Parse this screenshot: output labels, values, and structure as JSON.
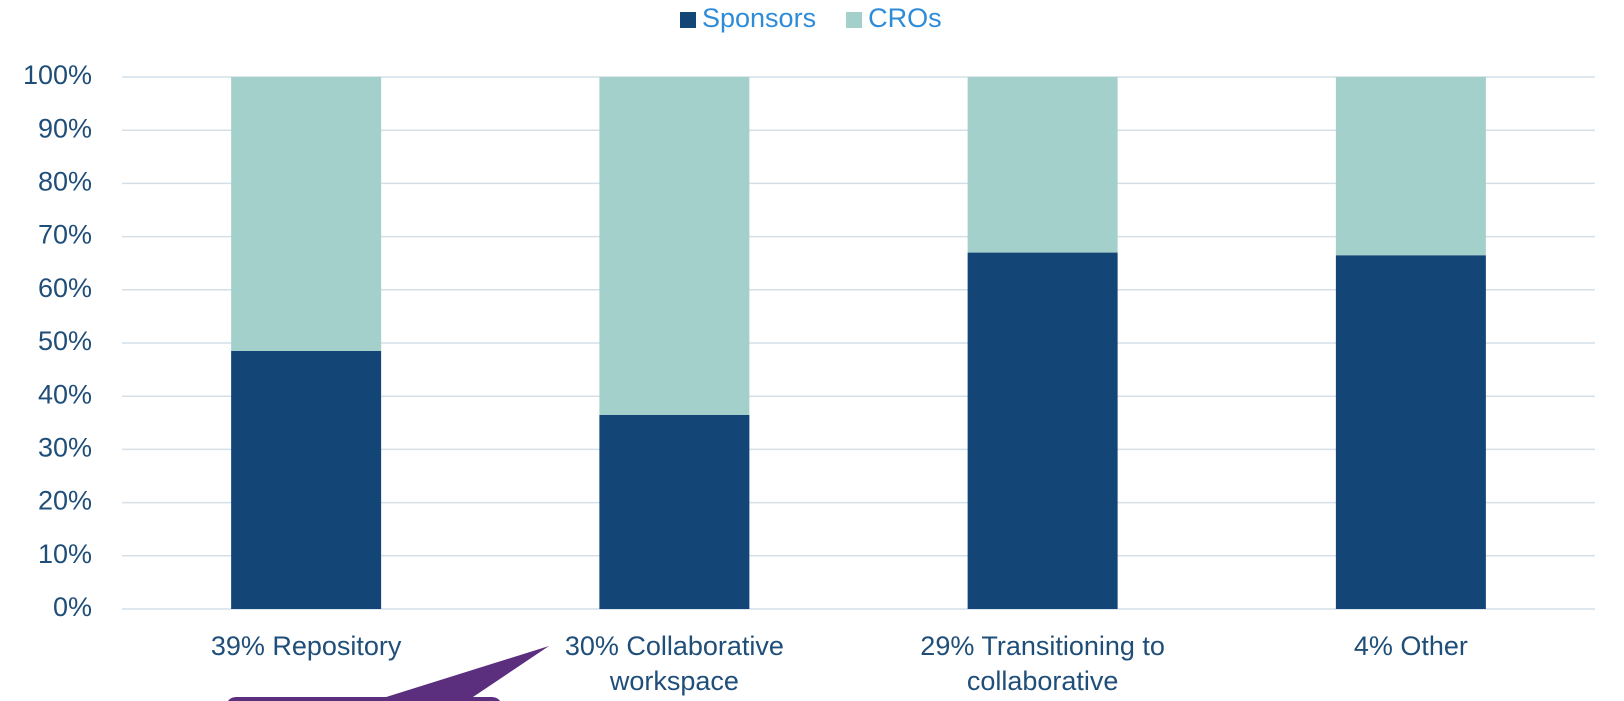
{
  "chart_data": {
    "type": "stacked_bar",
    "categories": [
      "39% Repository",
      "30% Collaborative workspace",
      "29% Transitioning to collaborative",
      "4% Other"
    ],
    "series": [
      {
        "name": "Sponsors",
        "color": "#134677",
        "values": [
          48.5,
          36.5,
          67,
          66.5
        ]
      },
      {
        "name": "CROs",
        "color": "#a3d0cb",
        "values": [
          51.5,
          63.5,
          33,
          33.5
        ]
      }
    ],
    "ylim": [
      0,
      100
    ],
    "yticks": [
      {
        "value": 0,
        "label": "0%"
      },
      {
        "value": 10,
        "label": "10%"
      },
      {
        "value": 20,
        "label": "20%"
      },
      {
        "value": 30,
        "label": "30%"
      },
      {
        "value": 40,
        "label": "40%"
      },
      {
        "value": 50,
        "label": "50%"
      },
      {
        "value": 60,
        "label": "60%"
      },
      {
        "value": 70,
        "label": "70%"
      },
      {
        "value": 80,
        "label": "80%"
      },
      {
        "value": 90,
        "label": "90%"
      },
      {
        "value": 100,
        "label": "100%"
      }
    ],
    "grid": true,
    "legend": "top"
  }
}
